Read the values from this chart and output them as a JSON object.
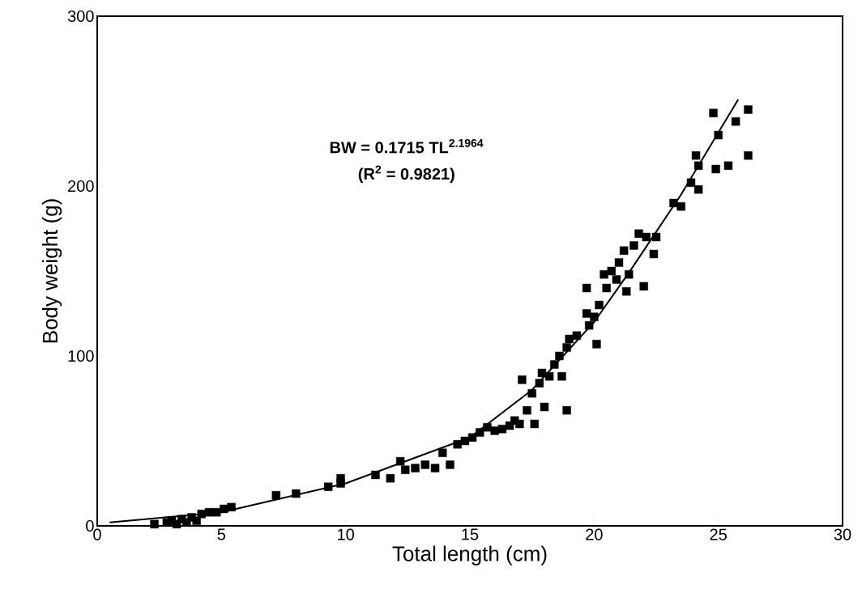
{
  "chart_data": {
    "type": "scatter",
    "xlabel": "Total length (cm)",
    "ylabel": "Body weight (g)",
    "xlim": [
      0,
      30
    ],
    "ylim": [
      0,
      300
    ],
    "xticks": [
      0,
      5,
      10,
      15,
      20,
      25,
      30
    ],
    "yticks": [
      0,
      100,
      200,
      300
    ],
    "marker": "square",
    "annotations": [
      "BW = 0.1715 TL$^{2.1964}$",
      "(R$^{2}$ = 0.9821)"
    ],
    "series": [
      {
        "color": "#000000",
        "x": [
          2.3,
          2.8,
          3.0,
          3.2,
          3.4,
          3.6,
          3.8,
          4.0,
          4.2,
          4.5,
          4.8,
          5.1,
          5.4,
          7.2,
          8.0,
          9.3,
          9.8,
          9.8,
          11.2,
          11.8,
          12.2,
          12.4,
          12.8,
          13.2,
          13.6,
          13.9,
          14.2,
          14.5,
          14.8,
          15.1,
          15.4,
          15.7,
          16.0,
          16.3,
          16.6,
          16.8,
          17.0,
          17.1,
          17.3,
          17.5,
          17.6,
          17.8,
          17.9,
          18.0,
          18.2,
          18.4,
          18.6,
          18.7,
          18.9,
          18.9,
          19.0,
          19.3,
          19.7,
          19.7,
          19.8,
          20.0,
          20.1,
          20.2,
          20.4,
          20.5,
          20.7,
          20.9,
          21.0,
          21.2,
          21.3,
          21.4,
          21.6,
          21.8,
          22.0,
          22.1,
          22.4,
          22.5,
          23.2,
          23.5,
          23.9,
          24.1,
          24.2,
          24.2,
          24.8,
          24.9,
          25.0,
          25.4,
          25.7,
          26.2,
          26.2
        ],
        "values": [
          1,
          2,
          3,
          1,
          4,
          2,
          5,
          3,
          7,
          8,
          8,
          10,
          11,
          18,
          19,
          23,
          25,
          28,
          30,
          28,
          38,
          33,
          34,
          36,
          34,
          43,
          36,
          48,
          50,
          52,
          55,
          58,
          56,
          57,
          59,
          62,
          60,
          86,
          68,
          78,
          60,
          84,
          90,
          70,
          88,
          95,
          100,
          88,
          68,
          105,
          110,
          112,
          140,
          125,
          118,
          123,
          107,
          130,
          148,
          140,
          150,
          145,
          155,
          162,
          138,
          148,
          165,
          172,
          141,
          170,
          160,
          170,
          190,
          188,
          202,
          218,
          198,
          212,
          243,
          210,
          230,
          212,
          238,
          245,
          218
        ]
      },
      {
        "type": "line",
        "color": "#000000",
        "marker": "none",
        "line_style": "solid",
        "x": [
          0.5,
          5,
          10,
          15,
          17.5,
          20,
          21.4,
          23.5,
          25.8
        ],
        "values": [
          2,
          8,
          25,
          52,
          80,
          120,
          149,
          195,
          251
        ]
      }
    ]
  }
}
